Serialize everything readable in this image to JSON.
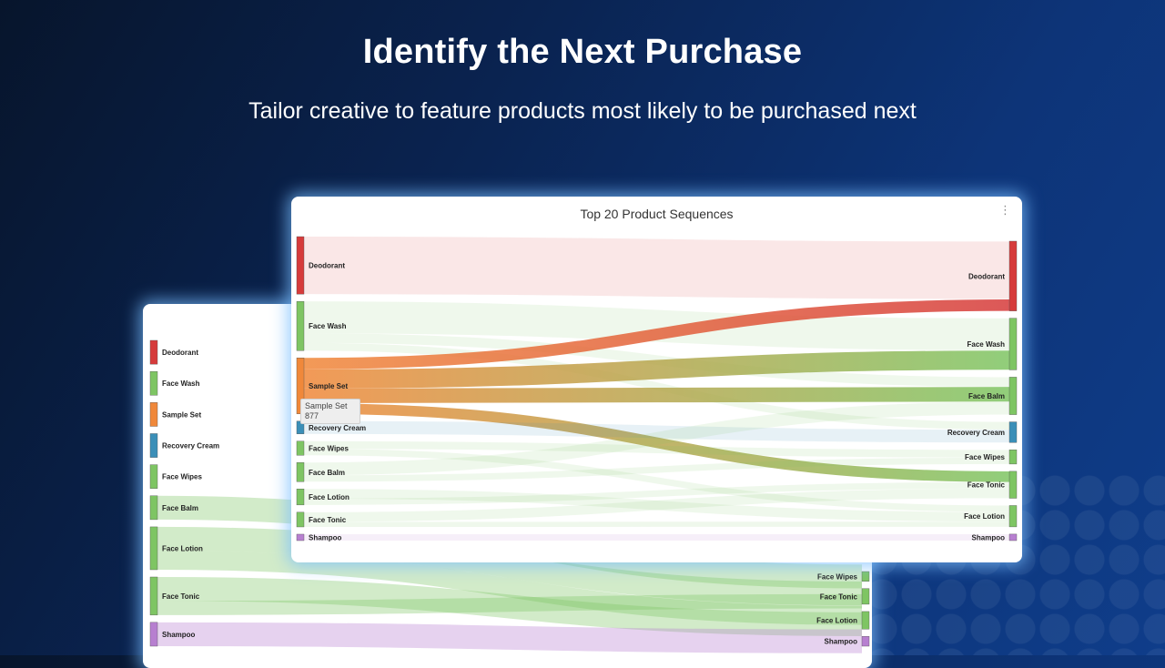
{
  "headline": "Identify the Next Purchase",
  "subline": "Tailor creative to feature products most likely to be purchased next",
  "colors": {
    "Deodorant": "#d63b3b",
    "Face Wash": "#7ec563",
    "Sample Set": "#f0883a",
    "Recovery Cream": "#3b8fb8",
    "Face Wipes": "#7ec563",
    "Face Balm": "#7ec563",
    "Face Lotion": "#7ec563",
    "Face Tonic": "#7ec563",
    "Shampoo": "#b77fd0"
  },
  "tooltip": {
    "label": "Sample Set",
    "value": "877"
  },
  "chart_data": [
    {
      "type": "sankey",
      "title": "Top 20 Product Sequences",
      "sources": [
        "Deodorant",
        "Face Wash",
        "Sample Set",
        "Recovery Cream",
        "Face Wipes",
        "Face Balm",
        "Face Lotion",
        "Face Tonic",
        "Shampoo"
      ],
      "targets": [
        "Deodorant",
        "Face Wash",
        "Face Balm",
        "Recovery Cream",
        "Face Wipes",
        "Face Tonic",
        "Face Lotion",
        "Shampoo"
      ],
      "links": [
        {
          "source": "Deodorant",
          "target": "Deodorant",
          "value": 900
        },
        {
          "source": "Face Wash",
          "target": "Face Wash",
          "value": 500
        },
        {
          "source": "Face Wash",
          "target": "Face Balm",
          "value": 150
        },
        {
          "source": "Face Wash",
          "target": "Recovery Cream",
          "value": 120
        },
        {
          "source": "Sample Set",
          "target": "Deodorant",
          "value": 180
        },
        {
          "source": "Sample Set",
          "target": "Face Wash",
          "value": 300
        },
        {
          "source": "Sample Set",
          "target": "Face Balm",
          "value": 230
        },
        {
          "source": "Sample Set",
          "target": "Face Tonic",
          "value": 167
        },
        {
          "source": "Recovery Cream",
          "target": "Recovery Cream",
          "value": 200
        },
        {
          "source": "Face Wipes",
          "target": "Face Wipes",
          "value": 120
        },
        {
          "source": "Face Wipes",
          "target": "Face Lotion",
          "value": 100
        },
        {
          "source": "Face Balm",
          "target": "Face Balm",
          "value": 200
        },
        {
          "source": "Face Balm",
          "target": "Face Wipes",
          "value": 100
        },
        {
          "source": "Face Lotion",
          "target": "Face Lotion",
          "value": 150
        },
        {
          "source": "Face Lotion",
          "target": "Face Tonic",
          "value": 100
        },
        {
          "source": "Face Tonic",
          "target": "Face Tonic",
          "value": 150
        },
        {
          "source": "Face Tonic",
          "target": "Face Lotion",
          "value": 80
        },
        {
          "source": "Shampoo",
          "target": "Shampoo",
          "value": 100
        }
      ],
      "highlight": "Sample Set"
    },
    {
      "type": "sankey",
      "sources": [
        "Deodorant",
        "Face Wash",
        "Sample Set",
        "Recovery Cream",
        "Face Wipes",
        "Face Balm",
        "Face Lotion",
        "Face Tonic",
        "Shampoo"
      ],
      "targets": [
        "Face Wipes",
        "Face Tonic",
        "Face Lotion",
        "Shampoo"
      ],
      "links": [
        {
          "source": "Face Balm",
          "target": "Face Wipes",
          "value": 100
        },
        {
          "source": "Face Lotion",
          "target": "Face Tonic",
          "value": 100
        },
        {
          "source": "Face Lotion",
          "target": "Face Lotion",
          "value": 80
        },
        {
          "source": "Face Tonic",
          "target": "Face Lotion",
          "value": 100
        },
        {
          "source": "Face Tonic",
          "target": "Face Tonic",
          "value": 60
        },
        {
          "source": "Shampoo",
          "target": "Shampoo",
          "value": 100
        }
      ]
    }
  ]
}
